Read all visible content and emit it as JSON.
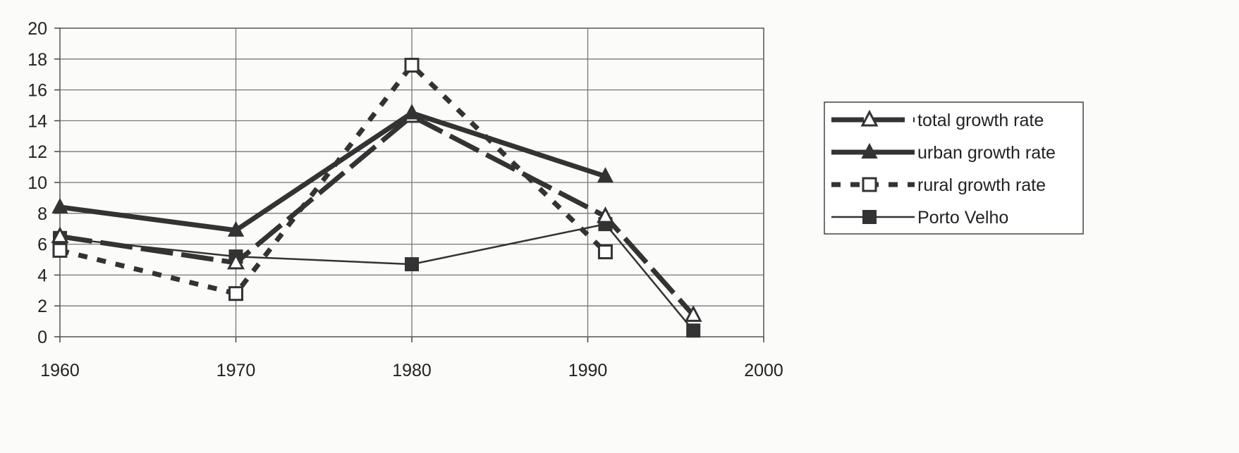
{
  "chart_data": {
    "type": "line",
    "title": "",
    "xlabel": "",
    "ylabel": "",
    "xlim": [
      1960,
      2000
    ],
    "ylim": [
      0,
      20
    ],
    "x_ticks": [
      1960,
      1970,
      1980,
      1990,
      2000
    ],
    "y_ticks": [
      0,
      2,
      4,
      6,
      8,
      10,
      12,
      14,
      16,
      18,
      20
    ],
    "grid": "horizontal",
    "legend_position": "right",
    "series": [
      {
        "name": "total growth rate",
        "marker": "open-triangle",
        "line": "long-dash-thick",
        "color": "#333333",
        "points": [
          [
            1960,
            6.5
          ],
          [
            1970,
            4.8
          ],
          [
            1980,
            14.3
          ],
          [
            1991,
            7.8
          ],
          [
            1996,
            1.4
          ]
        ]
      },
      {
        "name": "urban growth rate",
        "marker": "filled-triangle",
        "line": "solid-thick",
        "color": "#333333",
        "points": [
          [
            1960,
            8.4
          ],
          [
            1970,
            6.9
          ],
          [
            1980,
            14.5
          ],
          [
            1991,
            10.4
          ]
        ]
      },
      {
        "name": "rural growth rate",
        "marker": "open-square",
        "line": "short-dash-thick",
        "color": "#333333",
        "points": [
          [
            1960,
            5.6
          ],
          [
            1970,
            2.8
          ],
          [
            1980,
            17.6
          ],
          [
            1991,
            5.5
          ]
        ]
      },
      {
        "name": "Porto Velho",
        "marker": "filled-square",
        "line": "solid-thin",
        "color": "#333333",
        "points": [
          [
            1960,
            6.4
          ],
          [
            1970,
            5.2
          ],
          [
            1980,
            4.7
          ],
          [
            1991,
            7.3
          ],
          [
            1996,
            0.4
          ]
        ]
      }
    ]
  }
}
